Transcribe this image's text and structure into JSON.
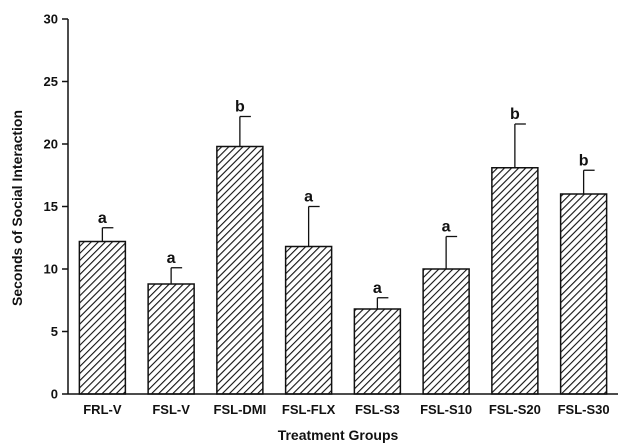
{
  "chart_data": {
    "type": "bar",
    "title": "",
    "xlabel": "Treatment Groups",
    "ylabel": "Seconds of Social Interaction",
    "ylim": [
      0,
      30
    ],
    "yticks": [
      0,
      5,
      10,
      15,
      20,
      25,
      30
    ],
    "grid": false,
    "legend": "none",
    "bar_fill": "diagonal-hatch",
    "bar_color": "#111111",
    "categories": [
      "FRL-V",
      "FSL-V",
      "FSL-DMI",
      "FSL-FLX",
      "FSL-S3",
      "FSL-S10",
      "FSL-S20",
      "FSL-S30"
    ],
    "values": [
      12.2,
      8.8,
      19.8,
      11.8,
      6.8,
      10.0,
      18.1,
      16.0
    ],
    "error_upper": [
      13.3,
      10.1,
      22.2,
      15.0,
      7.7,
      12.6,
      21.6,
      17.9
    ],
    "significance_labels": [
      "a",
      "a",
      "b",
      "a",
      "a",
      "a",
      "b",
      "b"
    ]
  }
}
